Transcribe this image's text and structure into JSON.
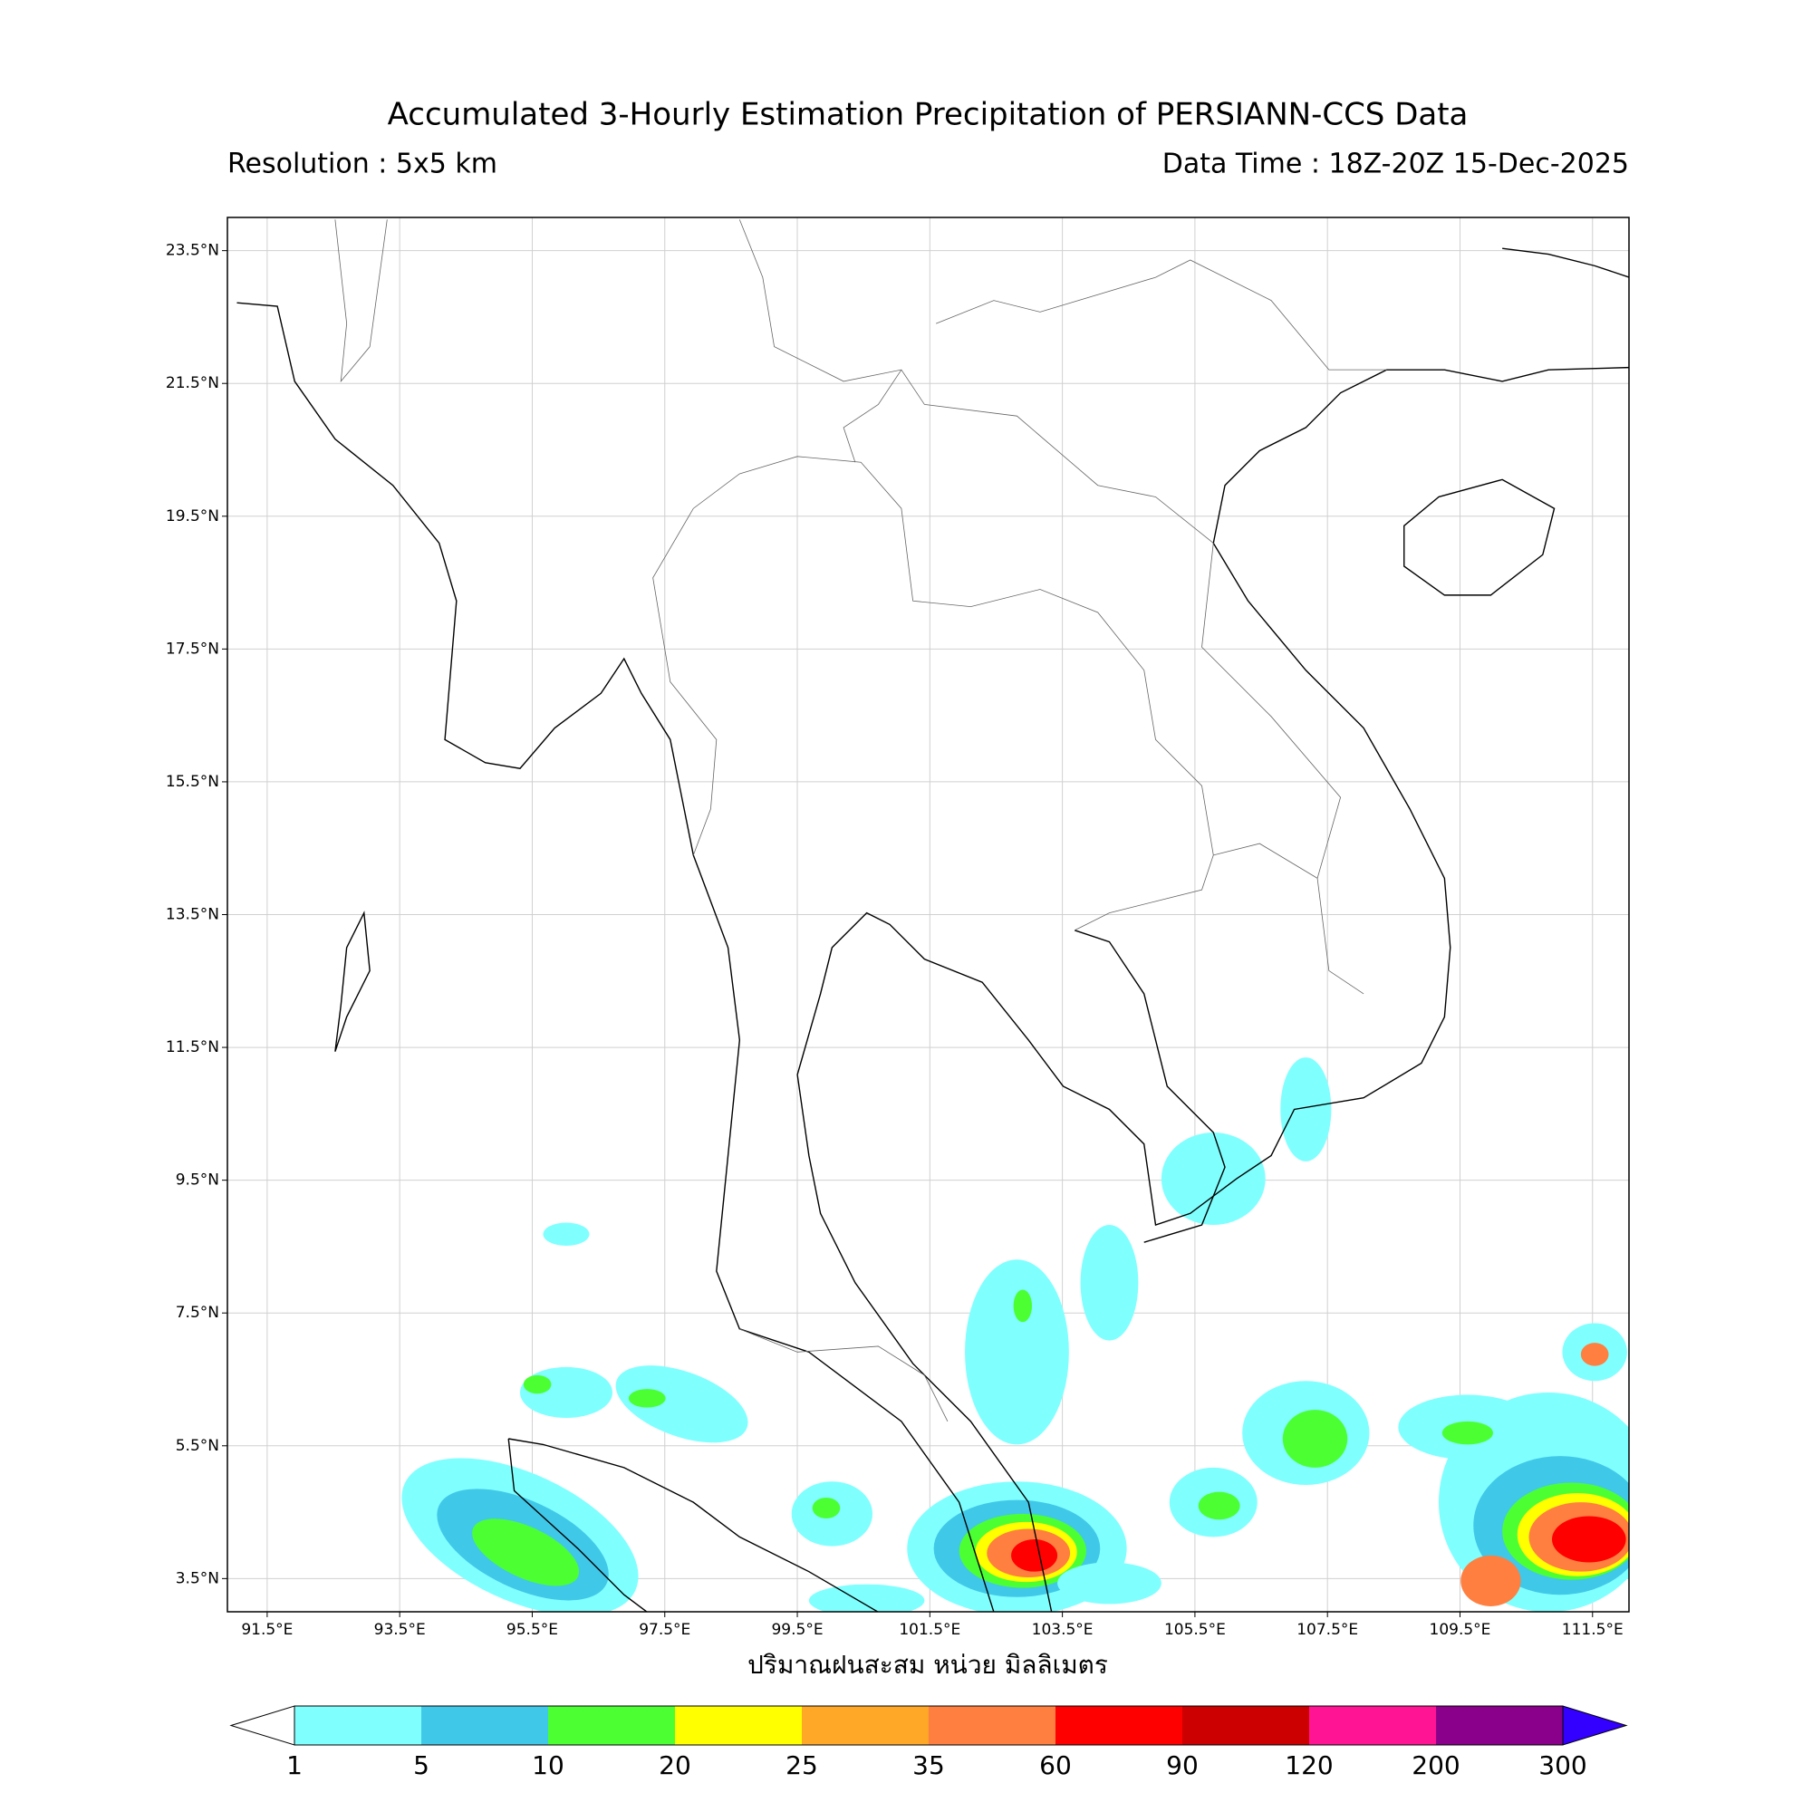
{
  "header": {
    "title": "Accumulated 3-Hourly Estimation Precipitation of PERSIANN-CCS Data",
    "resolution": "Resolution : 5x5 km",
    "data_time": "Data Time : 18Z-20Z 15-Dec-2025"
  },
  "map": {
    "xlim": [
      90.9,
      112.05
    ],
    "ylim": [
      3.0,
      24.0
    ],
    "grid": true,
    "xlabel": "ปริมาณฝนสะสม หน่วย มิลลิเมตร",
    "xticks": [
      {
        "value": 91.5,
        "label": "91.5°E"
      },
      {
        "value": 93.5,
        "label": "93.5°E"
      },
      {
        "value": 95.5,
        "label": "95.5°E"
      },
      {
        "value": 97.5,
        "label": "97.5°E"
      },
      {
        "value": 99.5,
        "label": "99.5°E"
      },
      {
        "value": 101.5,
        "label": "101.5°E"
      },
      {
        "value": 103.5,
        "label": "103.5°E"
      },
      {
        "value": 105.5,
        "label": "105.5°E"
      },
      {
        "value": 107.5,
        "label": "107.5°E"
      },
      {
        "value": 109.5,
        "label": "109.5°E"
      },
      {
        "value": 111.5,
        "label": "111.5°E"
      }
    ],
    "yticks": [
      {
        "value": 23.5,
        "label": "23.5°N"
      },
      {
        "value": 21.5,
        "label": "21.5°N"
      },
      {
        "value": 19.5,
        "label": "19.5°N"
      },
      {
        "value": 17.5,
        "label": "17.5°N"
      },
      {
        "value": 15.5,
        "label": "15.5°N"
      },
      {
        "value": 13.5,
        "label": "13.5°N"
      },
      {
        "value": 11.5,
        "label": "11.5°N"
      },
      {
        "value": 9.5,
        "label": "9.5°N"
      },
      {
        "value": 7.5,
        "label": "7.5°N"
      },
      {
        "value": 5.5,
        "label": "5.5°N"
      },
      {
        "value": 3.5,
        "label": "3.5°N"
      }
    ]
  },
  "colorbar": {
    "levels": [
      1,
      5,
      10,
      20,
      25,
      35,
      60,
      90,
      120,
      200,
      300
    ],
    "colors": [
      "#80ffff",
      "#40c8e8",
      "#4cff33",
      "#ffff00",
      "#ffa726",
      "#ff7f40",
      "#ff0000",
      "#cc0000",
      "#ff1493",
      "#8b008b"
    ],
    "under_color": "#ffffff",
    "over_color": "#3300ff"
  }
}
